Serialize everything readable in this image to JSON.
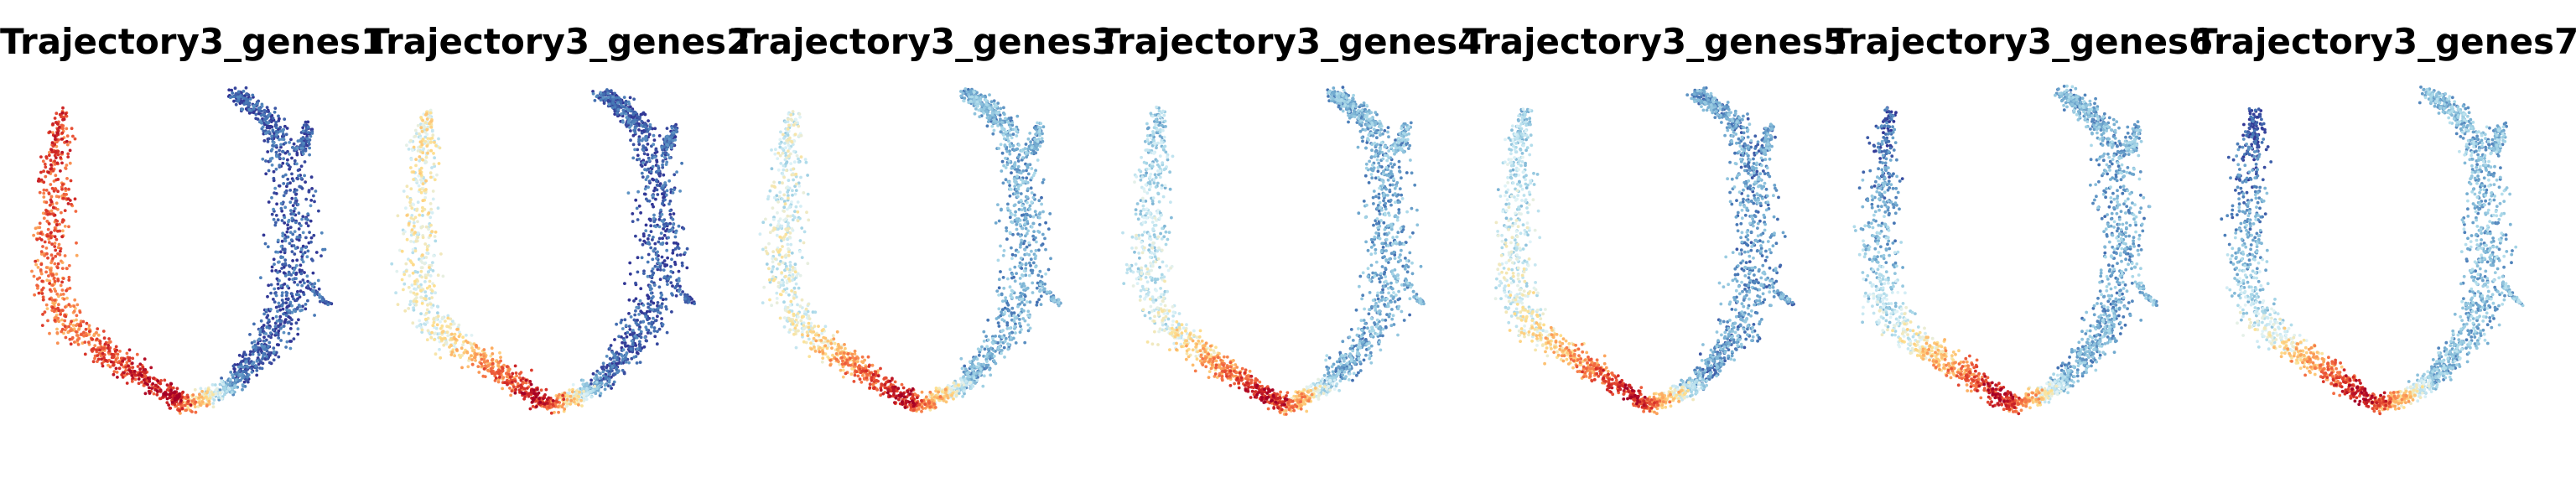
{
  "chart_data": [
    {
      "type": "scatter",
      "title": "Trajectory3_genes1",
      "color_profile": [
        0.85,
        0.62,
        0.35,
        0.05,
        0.05
      ],
      "axes_visible": false
    },
    {
      "type": "scatter",
      "title": "Trajectory3_genes2",
      "color_profile": [
        0.5,
        0.38,
        0.25,
        0.05,
        0.05
      ],
      "axes_visible": false
    },
    {
      "type": "scatter",
      "title": "Trajectory3_genes3",
      "color_profile": [
        0.4,
        0.5,
        0.22,
        0.22,
        0.22
      ],
      "axes_visible": false
    },
    {
      "type": "scatter",
      "title": "Trajectory3_genes4",
      "color_profile": [
        0.3,
        0.55,
        0.2,
        0.22,
        0.22
      ],
      "axes_visible": false
    },
    {
      "type": "scatter",
      "title": "Trajectory3_genes5",
      "color_profile": [
        0.3,
        0.65,
        0.15,
        0.18,
        0.18
      ],
      "axes_visible": false
    },
    {
      "type": "scatter",
      "title": "Trajectory3_genes6",
      "color_profile": [
        0.05,
        0.75,
        0.12,
        0.22,
        0.22
      ],
      "axes_visible": false
    },
    {
      "type": "scatter",
      "title": "Trajectory3_genes7",
      "color_profile": [
        0.0,
        0.8,
        0.05,
        0.25,
        0.25
      ],
      "axes_visible": false
    }
  ],
  "colormap": [
    "#313695",
    "#4575b4",
    "#74add1",
    "#abd9e9",
    "#e0f3f8",
    "#fee090",
    "#fdae61",
    "#f46d43",
    "#d73027",
    "#a50026"
  ]
}
